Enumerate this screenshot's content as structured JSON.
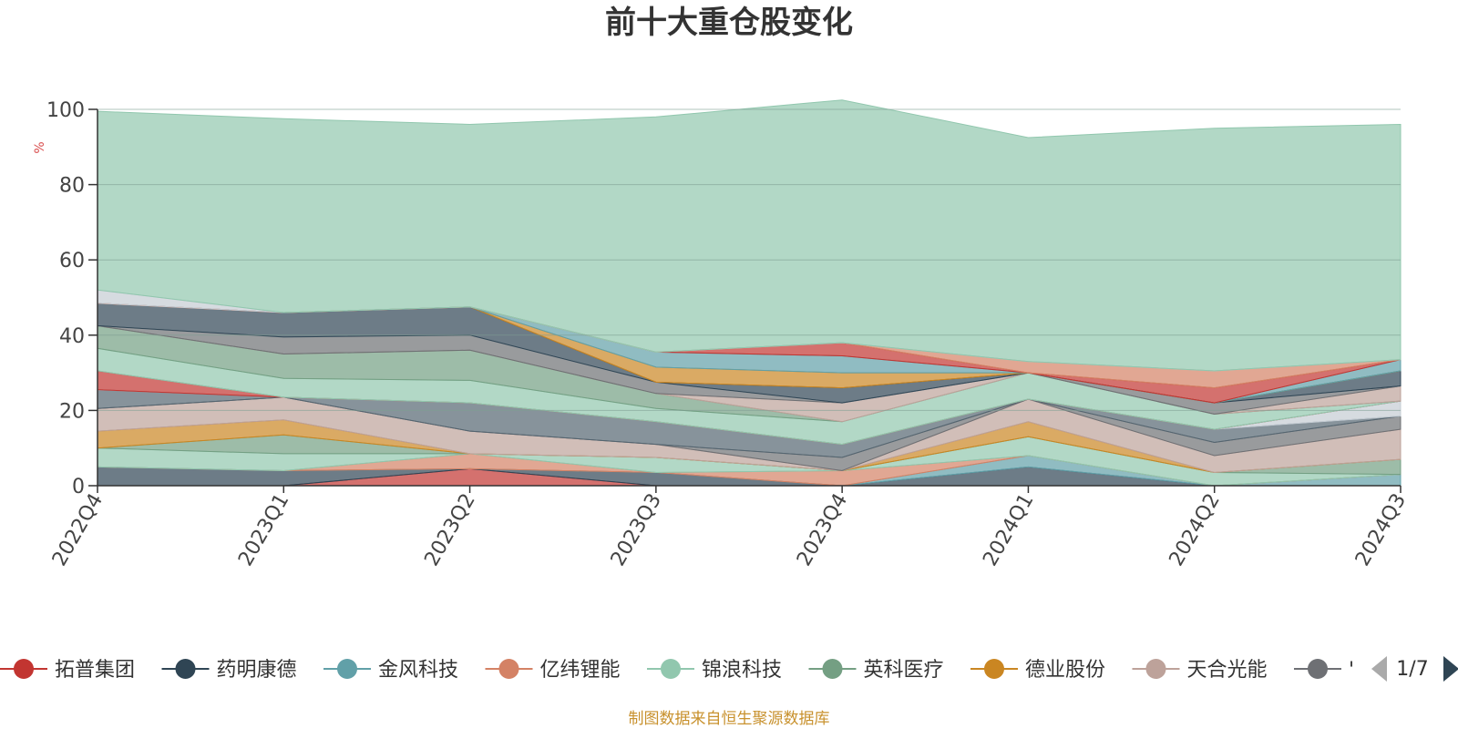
{
  "chart_data": {
    "type": "area",
    "stacked": true,
    "title": "前十大重仓股变化",
    "ylabel": "%",
    "ylim": [
      0,
      100
    ],
    "yticks": [
      0,
      20,
      40,
      60,
      80,
      100
    ],
    "categories": [
      "2022Q4",
      "2023Q1",
      "2023Q2",
      "2023Q3",
      "2023Q4",
      "2024Q1",
      "2024Q2",
      "2024Q3"
    ],
    "grid": true,
    "legend_position": "bottom",
    "series": [
      {
        "name": "拓普集团",
        "color": "#c23531",
        "values": [
          0,
          0,
          4.5,
          0,
          0,
          0,
          0,
          0
        ]
      },
      {
        "name": "药明康德",
        "color": "#2f4554",
        "values": [
          5,
          4,
          0,
          3.5,
          0,
          5,
          0,
          0
        ]
      },
      {
        "name": "金风科技",
        "color": "#61a0a8",
        "values": [
          0,
          0,
          0,
          0,
          0,
          3,
          0,
          3
        ]
      },
      {
        "name": "亿纬锂能",
        "color": "#d48265",
        "values": [
          0,
          0,
          4,
          0,
          4,
          0,
          0,
          0
        ]
      },
      {
        "name": "锦浪科技",
        "color": "#91c7ae",
        "values": [
          5,
          4.5,
          0,
          4,
          0,
          5,
          3.5,
          0
        ]
      },
      {
        "name": "英科医疗",
        "color": "#749f83",
        "values": [
          0,
          5,
          0,
          0,
          0,
          0,
          0,
          4
        ]
      },
      {
        "name": "德业股份",
        "color": "#ca8622",
        "values": [
          4.5,
          4,
          0,
          0,
          0,
          4,
          0,
          0
        ]
      },
      {
        "name": "天合光能",
        "color": "#bda29a",
        "values": [
          6,
          6,
          6,
          3.5,
          0,
          6,
          4.5,
          8
        ]
      },
      {
        "name": "",
        "color": "#6e7074",
        "values": [
          0,
          0,
          0,
          0,
          3.5,
          0,
          3.5,
          3.5
        ]
      },
      {
        "name": "",
        "color": "#546570",
        "values": [
          5,
          0,
          7.5,
          6,
          3.5,
          0,
          3.5,
          0
        ]
      },
      {
        "name": "",
        "color": "#c4ccd3",
        "values": [
          0,
          0,
          0,
          0,
          0,
          0,
          0,
          4
        ]
      },
      {
        "name": "",
        "color": "#c23531",
        "values": [
          5,
          0,
          0,
          0,
          0,
          0,
          0,
          0
        ]
      },
      {
        "name": "",
        "color": "#91c7ae",
        "values": [
          6,
          5,
          6,
          3.5,
          6,
          7,
          4,
          0
        ]
      },
      {
        "name": "",
        "color": "#749f83",
        "values": [
          6,
          6.5,
          8,
          4,
          0,
          0,
          0,
          0
        ]
      },
      {
        "name": "",
        "color": "#bda29a",
        "values": [
          0,
          0,
          0,
          0,
          5,
          0,
          0,
          4
        ]
      },
      {
        "name": "",
        "color": "#6e7074",
        "values": [
          0,
          4.5,
          4,
          3,
          0,
          0,
          3,
          0
        ]
      },
      {
        "name": "",
        "color": "#c4ccd3",
        "values": [
          0,
          0,
          0,
          0,
          0,
          0,
          0,
          0
        ]
      },
      {
        "name": "",
        "color": "#2f4554",
        "values": [
          6,
          6.5,
          7.5,
          0,
          4,
          0,
          0,
          4
        ]
      },
      {
        "name": "",
        "color": "#ca8622",
        "values": [
          0,
          0,
          0,
          4,
          4,
          0,
          0,
          0
        ]
      },
      {
        "name": "",
        "color": "#61a0a8",
        "values": [
          0,
          0,
          0,
          4,
          4.5,
          0,
          0,
          3
        ]
      },
      {
        "name": "",
        "color": "#c23531",
        "values": [
          0,
          0,
          0,
          0,
          3.5,
          0,
          4,
          0
        ]
      },
      {
        "name": "",
        "color": "#d48265",
        "values": [
          0,
          0,
          0,
          0,
          0,
          3,
          4.5,
          0
        ]
      },
      {
        "name": "",
        "color": "#c4ccd3",
        "values": [
          3.5,
          0,
          0,
          0,
          0,
          0,
          0,
          0
        ]
      },
      {
        "name": "",
        "color": "#91c7ae",
        "values": [
          47.5,
          51.5,
          48.5,
          62.5,
          64.5,
          59.5,
          64.5,
          62.5
        ]
      }
    ]
  },
  "legend": {
    "items": [
      {
        "label": "拓普集团",
        "color": "#c23531"
      },
      {
        "label": "药明康德",
        "color": "#2f4554"
      },
      {
        "label": "金风科技",
        "color": "#61a0a8"
      },
      {
        "label": "亿纬锂能",
        "color": "#d48265"
      },
      {
        "label": "锦浪科技",
        "color": "#91c7ae"
      },
      {
        "label": "英科医疗",
        "color": "#749f83"
      },
      {
        "label": "德业股份",
        "color": "#ca8622"
      },
      {
        "label": "天合光能",
        "color": "#bda29a"
      },
      {
        "label": "'",
        "color": "#6e7074"
      }
    ],
    "page": "1/7"
  },
  "footer": "制图数据来自恒生聚源数据库"
}
